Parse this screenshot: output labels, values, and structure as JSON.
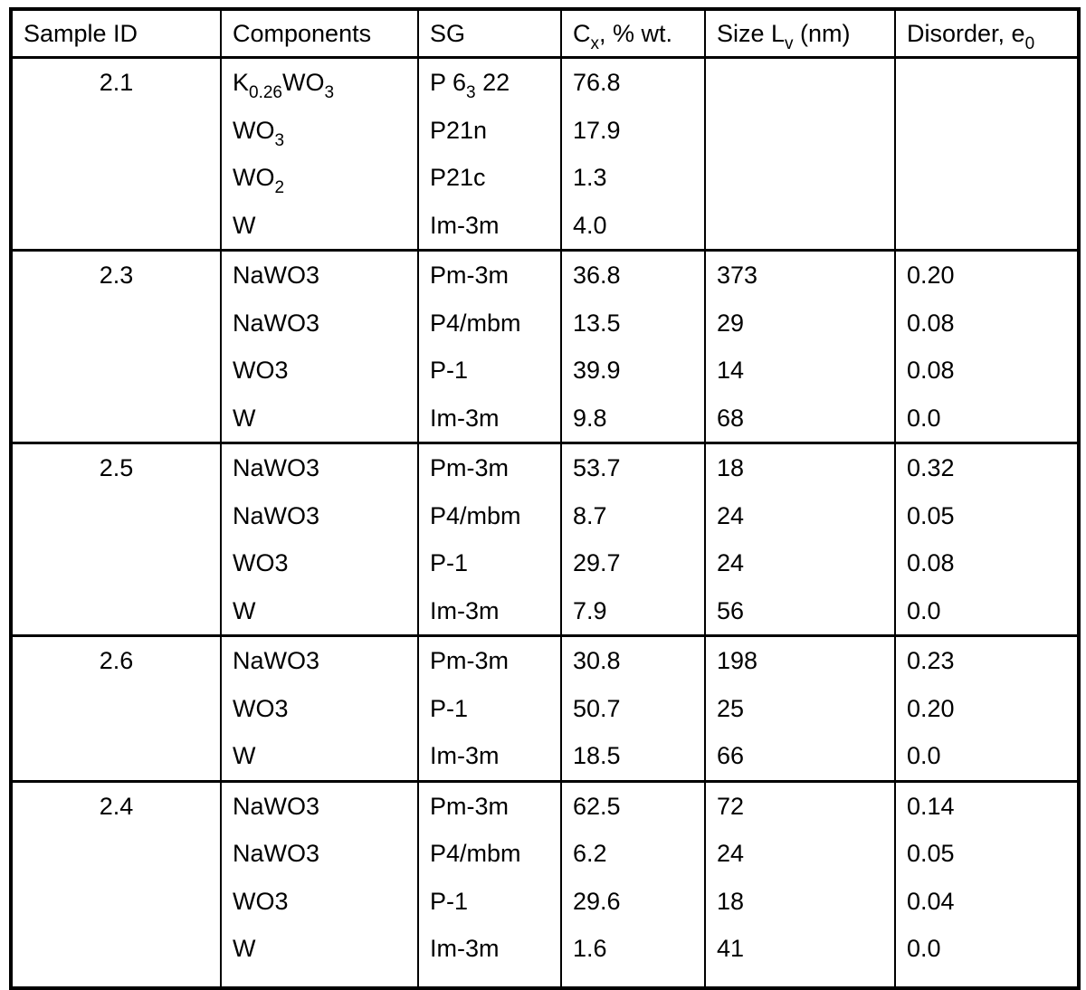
{
  "colors": {
    "background": "#ffffff",
    "border": "#000000",
    "text": "#000000"
  },
  "table": {
    "header": {
      "sample_id": [
        {
          "t": "Sample ID"
        }
      ],
      "components": [
        {
          "t": "Components"
        }
      ],
      "sg": [
        {
          "t": "SG"
        }
      ],
      "cx": [
        {
          "t": "C"
        },
        {
          "t": "x",
          "sub": true
        },
        {
          "t": ", % wt."
        }
      ],
      "size": [
        {
          "t": "Size L"
        },
        {
          "t": "v",
          "sub": true
        },
        {
          "t": " (nm)"
        }
      ],
      "disorder": [
        {
          "t": "Disorder, e"
        },
        {
          "t": "0",
          "sub": true
        }
      ]
    },
    "sections": [
      {
        "sample_id": "2.1",
        "rows": [
          {
            "component": [
              {
                "t": "K"
              },
              {
                "t": "0.26",
                "sub": true
              },
              {
                "t": "WO"
              },
              {
                "t": "3",
                "sub": true
              }
            ],
            "sg": [
              {
                "t": "P 6"
              },
              {
                "t": "3",
                "sub": true
              },
              {
                "t": " 22"
              }
            ],
            "cx": "76.8",
            "size": "",
            "disorder": ""
          },
          {
            "component": [
              {
                "t": "WO"
              },
              {
                "t": "3",
                "sub": true
              }
            ],
            "sg": [
              {
                "t": "P21n"
              }
            ],
            "cx": "17.9",
            "size": "",
            "disorder": ""
          },
          {
            "component": [
              {
                "t": "WO"
              },
              {
                "t": "2",
                "sub": true
              }
            ],
            "sg": [
              {
                "t": "P21c"
              }
            ],
            "cx": "1.3",
            "size": "",
            "disorder": ""
          },
          {
            "component": [
              {
                "t": "W"
              }
            ],
            "sg": [
              {
                "t": "Im-3m"
              }
            ],
            "cx": "4.0",
            "size": "",
            "disorder": ""
          }
        ]
      },
      {
        "sample_id": "2.3",
        "rows": [
          {
            "component": [
              {
                "t": "NaWO3"
              }
            ],
            "sg": [
              {
                "t": "Pm-3m"
              }
            ],
            "cx": "36.8",
            "size": "373",
            "disorder": "0.20"
          },
          {
            "component": [
              {
                "t": "NaWO3"
              }
            ],
            "sg": [
              {
                "t": "P4/mbm"
              }
            ],
            "cx": "13.5",
            "size": "29",
            "disorder": "0.08"
          },
          {
            "component": [
              {
                "t": "WO3"
              }
            ],
            "sg": [
              {
                "t": "P-1"
              }
            ],
            "cx": "39.9",
            "size": "14",
            "disorder": "0.08"
          },
          {
            "component": [
              {
                "t": "W"
              }
            ],
            "sg": [
              {
                "t": "Im-3m"
              }
            ],
            "cx": "9.8",
            "size": "68",
            "disorder": "0.0"
          }
        ]
      },
      {
        "sample_id": "2.5",
        "rows": [
          {
            "component": [
              {
                "t": "NaWO3"
              }
            ],
            "sg": [
              {
                "t": "Pm-3m"
              }
            ],
            "cx": "53.7",
            "size": "18",
            "disorder": "0.32"
          },
          {
            "component": [
              {
                "t": "NaWO3"
              }
            ],
            "sg": [
              {
                "t": "P4/mbm"
              }
            ],
            "cx": "8.7",
            "size": "24",
            "disorder": "0.05"
          },
          {
            "component": [
              {
                "t": "WO3"
              }
            ],
            "sg": [
              {
                "t": "P-1"
              }
            ],
            "cx": "29.7",
            "size": "24",
            "disorder": "0.08"
          },
          {
            "component": [
              {
                "t": "W"
              }
            ],
            "sg": [
              {
                "t": "Im-3m"
              }
            ],
            "cx": "7.9",
            "size": "56",
            "disorder": "0.0"
          }
        ]
      },
      {
        "sample_id": "2.6",
        "rows": [
          {
            "component": [
              {
                "t": "NaWO3"
              }
            ],
            "sg": [
              {
                "t": "Pm-3m"
              }
            ],
            "cx": "30.8",
            "size": "198",
            "disorder": "0.23"
          },
          {
            "component": [
              {
                "t": "WO3"
              }
            ],
            "sg": [
              {
                "t": "P-1"
              }
            ],
            "cx": "50.7",
            "size": "25",
            "disorder": "0.20"
          },
          {
            "component": [
              {
                "t": "W"
              }
            ],
            "sg": [
              {
                "t": "Im-3m"
              }
            ],
            "cx": "18.5",
            "size": "66",
            "disorder": "0.0"
          }
        ]
      },
      {
        "sample_id": "2.4",
        "rows": [
          {
            "component": [
              {
                "t": "NaWO3"
              }
            ],
            "sg": [
              {
                "t": "Pm-3m"
              }
            ],
            "cx": "62.5",
            "size": "72",
            "disorder": "0.14"
          },
          {
            "component": [
              {
                "t": "NaWO3"
              }
            ],
            "sg": [
              {
                "t": "P4/mbm"
              }
            ],
            "cx": "6.2",
            "size": "24",
            "disorder": "0.05"
          },
          {
            "component": [
              {
                "t": "WO3"
              }
            ],
            "sg": [
              {
                "t": "P-1"
              }
            ],
            "cx": "29.6",
            "size": "18",
            "disorder": "0.04"
          },
          {
            "component": [
              {
                "t": "W"
              }
            ],
            "sg": [
              {
                "t": "Im-3m"
              }
            ],
            "cx": "1.6",
            "size": "41",
            "disorder": "0.0"
          }
        ]
      }
    ]
  }
}
